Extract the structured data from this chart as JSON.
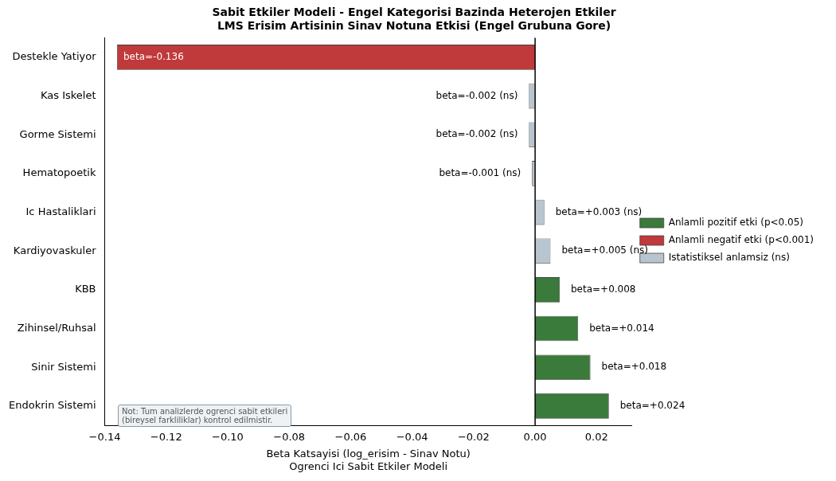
{
  "chart_data": {
    "type": "bar",
    "orientation": "horizontal",
    "title": "Sabit Etkiler Modeli - Engel Kategorisi Bazinda Heterojen Etkiler\nLMS Erisim Artisinin Sinav Notuna Etkisi (Engel Grubuna Gore)",
    "xlabel": "Beta Katsayisi (log_erisim - Sinav Notu)\nOgrenci Ici Sabit Etkiler Modeli",
    "categories": [
      "Destekle Yatiyor",
      "Kas Iskelet",
      "Gorme Sistemi",
      "Hematopoetik",
      "Ic Hastaliklari",
      "Kardiyovaskuler",
      "KBB",
      "Zihinsel/Ruhsal",
      "Sinir Sistemi",
      "Endokrin Sistemi"
    ],
    "series": [
      {
        "name": "Anlamli pozitif etki (p<0.05)",
        "color": "#3a7a3a",
        "values": [
          null,
          null,
          null,
          null,
          null,
          null,
          0.008,
          0.014,
          0.018,
          0.024
        ],
        "value_labels": [
          null,
          null,
          null,
          null,
          null,
          null,
          "beta=+0.008",
          "beta=+0.014",
          "beta=+0.018",
          "beta=+0.024"
        ]
      },
      {
        "name": "Anlamli negatif etki (p<0.001)",
        "color": "#c0393b",
        "values": [
          -0.136,
          null,
          null,
          null,
          null,
          null,
          null,
          null,
          null,
          null
        ],
        "value_labels": [
          "beta=-0.136",
          null,
          null,
          null,
          null,
          null,
          null,
          null,
          null,
          null
        ]
      },
      {
        "name": "Istatistiksel anlamsiz (ns)",
        "color": "#b9c5ce",
        "values": [
          null,
          -0.002,
          -0.002,
          -0.001,
          0.003,
          0.005,
          null,
          null,
          null,
          null
        ],
        "value_labels": [
          null,
          "beta=-0.002 (ns)",
          "beta=-0.002 (ns)",
          "beta=-0.001 (ns)",
          "beta=+0.003 (ns)",
          "beta=+0.005 (ns)",
          null,
          null,
          null,
          null
        ]
      }
    ],
    "xlim": [
      -0.14,
      0.0315
    ],
    "xticks": [
      {
        "value": -0.14,
        "label": "−0.14"
      },
      {
        "value": -0.12,
        "label": "−0.12"
      },
      {
        "value": -0.1,
        "label": "−0.10"
      },
      {
        "value": -0.08,
        "label": "−0.08"
      },
      {
        "value": -0.06,
        "label": "−0.06"
      },
      {
        "value": -0.04,
        "label": "−0.04"
      },
      {
        "value": -0.02,
        "label": "−0.02"
      },
      {
        "value": 0,
        "label": "0.00"
      },
      {
        "value": 0.02,
        "label": "0.02"
      }
    ],
    "ref_lines": [
      {
        "axis": "x",
        "value": 0,
        "color": "#000000"
      }
    ],
    "grid": false,
    "legend": "right",
    "annotations": [
      "Not: Tum analizlerde ogrenci sabit etkileri\n(bireysel farkliliklar) kontrol edilmistir."
    ]
  }
}
